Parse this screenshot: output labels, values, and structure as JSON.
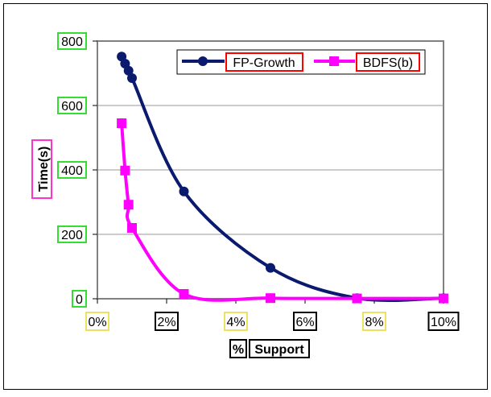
{
  "chart_data": {
    "type": "line",
    "title": "",
    "xlabel": "% Support",
    "xlabel_parts": [
      "%",
      "Support"
    ],
    "ylabel": "Time(s)",
    "x_tick_labels": [
      "0%",
      "2%",
      "4%",
      "6%",
      "8%",
      "10%"
    ],
    "x_ticks": [
      0,
      2,
      4,
      6,
      8,
      10
    ],
    "y_tick_labels": [
      "0",
      "200",
      "400",
      "600",
      "800"
    ],
    "y_ticks": [
      0,
      200,
      400,
      600,
      800
    ],
    "xlim": [
      0,
      10
    ],
    "ylim": [
      0,
      800
    ],
    "grid": "horizontal",
    "legend_position": "top-right",
    "series": [
      {
        "name": "FP-Growth",
        "color": "#0a1a6e",
        "marker": "circle",
        "x": [
          0.7,
          0.8,
          0.9,
          1.0,
          2.5,
          5.0,
          7.5,
          10.0
        ],
        "y": [
          752,
          730,
          708,
          685,
          333,
          96,
          2,
          2
        ]
      },
      {
        "name": "BDFS(b)",
        "color": "#ff00ff",
        "marker": "square",
        "x": [
          0.7,
          0.8,
          0.9,
          1.0,
          2.5,
          5.0,
          7.5,
          10.0
        ],
        "y": [
          545,
          398,
          292,
          220,
          15,
          2,
          1,
          1
        ]
      }
    ]
  }
}
